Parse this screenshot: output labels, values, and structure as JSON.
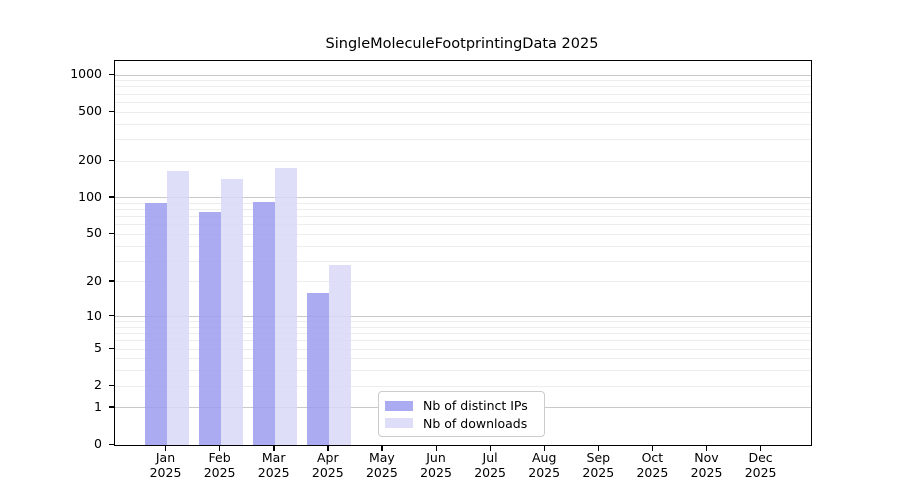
{
  "title": "SingleMoleculeFootprintingData 2025",
  "chart_data": {
    "type": "bar",
    "title": "SingleMoleculeFootprintingData 2025",
    "y_scale": "log10(1+x)",
    "grid": true,
    "categories": [
      "Jan 2025",
      "Feb 2025",
      "Mar 2025",
      "Apr 2025",
      "May 2025",
      "Jun 2025",
      "Jul 2025",
      "Aug 2025",
      "Sep 2025",
      "Oct 2025",
      "Nov 2025",
      "Dec 2025"
    ],
    "series": [
      {
        "name": "Nb of distinct IPs",
        "color": "#9c9cf0",
        "values": [
          90,
          77,
          92,
          16,
          0,
          0,
          0,
          0,
          0,
          0,
          0,
          0
        ]
      },
      {
        "name": "Nb of downloads",
        "color": "#d8d8f8",
        "values": [
          165,
          142,
          176,
          28,
          0,
          0,
          0,
          0,
          0,
          0,
          0,
          0
        ]
      }
    ],
    "y_axis": {
      "tick_values": [
        0,
        1,
        2,
        5,
        10,
        20,
        50,
        100,
        200,
        500,
        1000
      ],
      "tick_labels": [
        "0",
        "1",
        "2",
        "5",
        "10",
        "20",
        "50",
        "100",
        "200",
        "500",
        "1000"
      ],
      "major_grid_values": [
        1,
        10,
        100,
        1000
      ],
      "minor_grid_values": [
        2,
        3,
        4,
        5,
        6,
        7,
        8,
        9,
        20,
        30,
        40,
        50,
        60,
        70,
        80,
        90,
        200,
        300,
        400,
        500,
        600,
        700,
        800,
        900
      ],
      "ylim": [
        0,
        1300
      ]
    },
    "legend_position": "lower center",
    "colors": {
      "major_grid": "#c9c9c9",
      "minor_grid": "#ededed",
      "axis": "#000000",
      "background": "#ffffff"
    }
  },
  "legend": {
    "items": [
      {
        "label": "Nb of distinct IPs",
        "color": "#9c9cf0"
      },
      {
        "label": "Nb of downloads",
        "color": "#d8d8f8"
      }
    ]
  }
}
